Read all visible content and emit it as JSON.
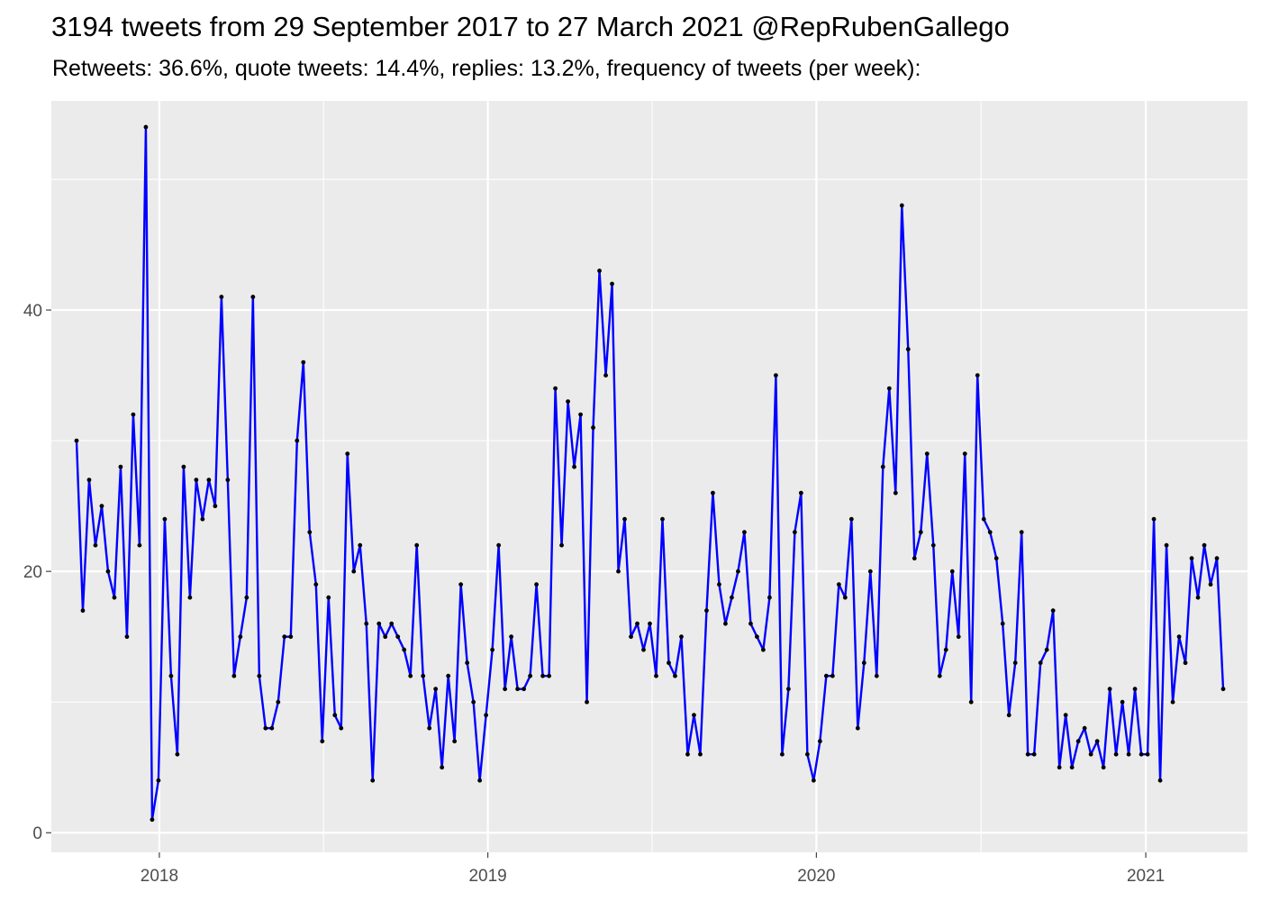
{
  "title": "3194 tweets from 29 September 2017 to 27 March 2021 @RepRubenGallego",
  "subtitle": "Retweets: 36.6%, quote tweets: 14.4%, replies: 13.2%, frequency of tweets (per week):",
  "chart_data": {
    "type": "line",
    "xlabel": "",
    "ylabel": "",
    "grid": true,
    "legend": "none",
    "x_range": [
      "2017-09-03",
      "2021-04-24"
    ],
    "ylim": [
      -1.5,
      56
    ],
    "x_ticks": [
      {
        "date": "2018-01-01",
        "label": "2018"
      },
      {
        "date": "2019-01-01",
        "label": "2019"
      },
      {
        "date": "2020-01-01",
        "label": "2020"
      },
      {
        "date": "2021-01-01",
        "label": "2021"
      }
    ],
    "y_ticks": [
      0,
      20,
      40
    ],
    "colors": {
      "line": "#0000ff",
      "point": "#000000",
      "panel": "#ebebeb",
      "grid": "#ffffff"
    },
    "series": [
      {
        "start_date": "2017-10-01",
        "interval_days": 7,
        "values": [
          30,
          17,
          27,
          22,
          25,
          20,
          18,
          28,
          15,
          32,
          22,
          54,
          1,
          4,
          24,
          12,
          6,
          28,
          18,
          27,
          24,
          27,
          25,
          41,
          27,
          12,
          15,
          18,
          41,
          12,
          8,
          8,
          10,
          15,
          15,
          30,
          36,
          23,
          19,
          7,
          18,
          9,
          8,
          29,
          20,
          22,
          16,
          4,
          16,
          15,
          16,
          15,
          14,
          12,
          22,
          12,
          8,
          11,
          5,
          12,
          7,
          19,
          13,
          10,
          4,
          9,
          14,
          22,
          11,
          15,
          11,
          11,
          12,
          19,
          12,
          12,
          34,
          22,
          33,
          28,
          32,
          10,
          31,
          43,
          35,
          42,
          20,
          24,
          15,
          16,
          14,
          16,
          12,
          24,
          13,
          12,
          15,
          6,
          9,
          6,
          17,
          26,
          19,
          16,
          18,
          20,
          23,
          16,
          15,
          14,
          18,
          35,
          6,
          11,
          23,
          26,
          6,
          4,
          7,
          12,
          12,
          19,
          18,
          24,
          8,
          13,
          20,
          12,
          28,
          34,
          26,
          48,
          37,
          21,
          23,
          29,
          22,
          12,
          14,
          20,
          15,
          29,
          10,
          35,
          24,
          23,
          21,
          16,
          9,
          13,
          23,
          6,
          6,
          13,
          14,
          17,
          5,
          9,
          5,
          7,
          8,
          6,
          7,
          5,
          11,
          6,
          10,
          6,
          11,
          6,
          6,
          24,
          4,
          22,
          10,
          15,
          13,
          21,
          18,
          22,
          19,
          21,
          11
        ]
      }
    ]
  }
}
